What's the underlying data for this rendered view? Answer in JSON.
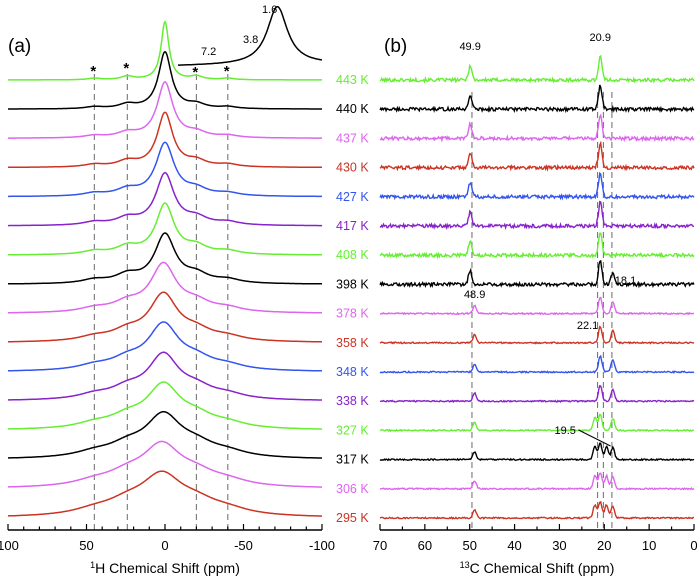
{
  "chart_data": [
    {
      "type": "line",
      "panel": "(a)",
      "title": "",
      "xlabel_sup": "1",
      "xlabel": "H Chemical Shift (ppm)",
      "ylabel": "",
      "xlim": [
        100,
        -100
      ],
      "x_ticks": [
        "100",
        "50",
        "0",
        "-50",
        "-100"
      ],
      "x_tick_values": [
        100,
        50,
        0,
        -50,
        -100
      ],
      "grid": false,
      "reference_lines_ppm": [
        45,
        24,
        -20,
        -40
      ],
      "spinning_sideband_marker": "*",
      "inset_labels": [
        "1.6",
        "3.8",
        "7.2"
      ],
      "series": [
        {
          "name": "443 K",
          "color": "#66ee33",
          "central_peak_ppm": 0,
          "linewidth_ppm": 3
        },
        {
          "name": "440 K",
          "color": "#000000",
          "central_peak_ppm": 0,
          "linewidth_ppm": 5
        },
        {
          "name": "437 K",
          "color": "#dd66ee",
          "central_peak_ppm": 0,
          "linewidth_ppm": 6
        },
        {
          "name": "430 K",
          "color": "#cc3322",
          "central_peak_ppm": 0,
          "linewidth_ppm": 6
        },
        {
          "name": "427 K",
          "color": "#3355ee",
          "central_peak_ppm": 0,
          "linewidth_ppm": 7
        },
        {
          "name": "417 K",
          "color": "#8822cc",
          "central_peak_ppm": 0,
          "linewidth_ppm": 7
        },
        {
          "name": "408 K",
          "color": "#66ee33",
          "central_peak_ppm": 0,
          "linewidth_ppm": 7
        },
        {
          "name": "398 K",
          "color": "#000000",
          "central_peak_ppm": 0,
          "linewidth_ppm": 8
        },
        {
          "name": "378 K",
          "color": "#dd66ee",
          "central_peak_ppm": 1,
          "linewidth_ppm": 10
        },
        {
          "name": "358 K",
          "color": "#cc3322",
          "central_peak_ppm": 1,
          "linewidth_ppm": 11
        },
        {
          "name": "348 K",
          "color": "#3355ee",
          "central_peak_ppm": 1,
          "linewidth_ppm": 12
        },
        {
          "name": "338 K",
          "color": "#8822cc",
          "central_peak_ppm": 1,
          "linewidth_ppm": 12
        },
        {
          "name": "327 K",
          "color": "#66ee33",
          "central_peak_ppm": 1,
          "linewidth_ppm": 13
        },
        {
          "name": "317 K",
          "color": "#000000",
          "central_peak_ppm": 1,
          "linewidth_ppm": 14
        },
        {
          "name": "306 K",
          "color": "#dd66ee",
          "central_peak_ppm": 2,
          "linewidth_ppm": 15
        },
        {
          "name": "295 K",
          "color": "#cc3322",
          "central_peak_ppm": 2,
          "linewidth_ppm": 16
        }
      ]
    },
    {
      "type": "line",
      "panel": "(b)",
      "title": "",
      "xlabel_sup": "13",
      "xlabel": "C Chemical Shift (ppm)",
      "ylabel": "",
      "xlim": [
        70,
        0
      ],
      "x_ticks": [
        "70",
        "60",
        "50",
        "40",
        "30",
        "20",
        "10",
        "0"
      ],
      "x_tick_values": [
        70,
        60,
        50,
        40,
        30,
        20,
        10,
        0
      ],
      "grid": false,
      "reference_lines_ppm": [
        49.5,
        21.5,
        20.2,
        18.3
      ],
      "peak_labels": [
        "49.9",
        "20.9",
        "18.1",
        "48.9",
        "22.1",
        "19.5"
      ],
      "series": [
        {
          "name": "443 K",
          "color": "#66ee33",
          "peaks_ppm": [
            49.9,
            20.9
          ]
        },
        {
          "name": "440 K",
          "color": "#000000",
          "peaks_ppm": [
            49.9,
            20.9
          ]
        },
        {
          "name": "437 K",
          "color": "#dd66ee",
          "peaks_ppm": [
            49.9,
            20.9
          ]
        },
        {
          "name": "430 K",
          "color": "#cc3322",
          "peaks_ppm": [
            49.9,
            20.9
          ]
        },
        {
          "name": "427 K",
          "color": "#3355ee",
          "peaks_ppm": [
            49.9,
            20.9
          ]
        },
        {
          "name": "417 K",
          "color": "#8822cc",
          "peaks_ppm": [
            49.9,
            20.9
          ]
        },
        {
          "name": "408 K",
          "color": "#66ee33",
          "peaks_ppm": [
            49.9,
            20.9
          ]
        },
        {
          "name": "398 K",
          "color": "#000000",
          "peaks_ppm": [
            49.9,
            20.9,
            18.1
          ]
        },
        {
          "name": "378 K",
          "color": "#dd66ee",
          "peaks_ppm": [
            48.9,
            20.9,
            18.1
          ]
        },
        {
          "name": "358 K",
          "color": "#cc3322",
          "peaks_ppm": [
            48.9,
            20.9,
            18.1
          ]
        },
        {
          "name": "348 K",
          "color": "#3355ee",
          "peaks_ppm": [
            48.9,
            20.9,
            18.1
          ]
        },
        {
          "name": "338 K",
          "color": "#8822cc",
          "peaks_ppm": [
            48.9,
            20.9,
            18.1
          ]
        },
        {
          "name": "327 K",
          "color": "#66ee33",
          "peaks_ppm": [
            48.9,
            22.1,
            20.9,
            18.1
          ]
        },
        {
          "name": "317 K",
          "color": "#000000",
          "peaks_ppm": [
            48.9,
            22.1,
            20.9,
            19.5,
            18.1
          ]
        },
        {
          "name": "306 K",
          "color": "#dd66ee",
          "peaks_ppm": [
            48.9,
            22.1,
            20.9,
            19.5,
            18.1
          ]
        },
        {
          "name": "295 K",
          "color": "#cc3322",
          "peaks_ppm": [
            48.9,
            22.1,
            20.9,
            19.5,
            18.1
          ]
        }
      ]
    }
  ]
}
